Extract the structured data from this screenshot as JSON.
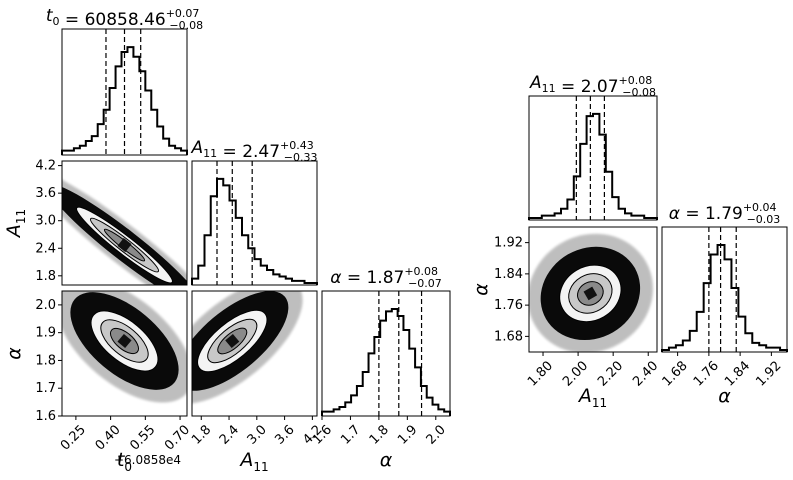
{
  "chart_data": [
    {
      "type": "corner",
      "params": [
        {
          "symbol": "t",
          "sub": "0",
          "title_value": "60858.46",
          "err_plus": "+0.07",
          "err_minus": "−0.08",
          "offset_label": "+6.0858e4",
          "median": 0.46,
          "q16": 0.38,
          "q84": 0.53,
          "range": [
            0.19,
            0.73
          ],
          "ticks": [
            "0.25",
            "0.40",
            "0.55",
            "0.70"
          ],
          "tick_values": [
            0.25,
            0.4,
            0.55,
            0.7
          ]
        },
        {
          "symbol": "A",
          "sub": "11",
          "title_value": "2.47",
          "err_plus": "+0.43",
          "err_minus": "−0.33",
          "median": 2.47,
          "q16": 2.14,
          "q84": 2.9,
          "range": [
            1.6,
            4.3
          ],
          "ticks": [
            "1.8",
            "2.4",
            "3.0",
            "3.6",
            "4.2"
          ],
          "tick_values": [
            1.8,
            2.4,
            3.0,
            3.6,
            4.2
          ]
        },
        {
          "symbol": "α",
          "sub": "",
          "title_value": "1.87",
          "err_plus": "+0.08",
          "err_minus": "−0.07",
          "median": 1.87,
          "q16": 1.8,
          "q84": 1.95,
          "range": [
            1.6,
            2.05
          ],
          "ticks": [
            "1.6",
            "1.7",
            "1.8",
            "1.9",
            "2.0"
          ],
          "tick_values": [
            1.6,
            1.7,
            1.8,
            1.9,
            2.0
          ]
        }
      ],
      "histograms": [
        [
          1,
          1,
          2,
          3,
          5,
          7,
          12,
          18,
          27,
          36,
          42,
          44,
          40,
          34,
          26,
          18,
          11,
          6,
          3,
          2,
          1
        ],
        [
          2,
          8,
          22,
          40,
          48,
          45,
          38,
          30,
          22,
          16,
          11,
          8,
          6,
          4,
          3,
          2,
          1,
          1,
          0,
          0
        ],
        [
          1,
          1,
          2,
          3,
          5,
          8,
          12,
          18,
          26,
          33,
          40,
          44,
          45,
          42,
          36,
          28,
          20,
          12,
          7,
          4,
          2,
          1
        ]
      ]
    },
    {
      "type": "corner",
      "params": [
        {
          "symbol": "A",
          "sub": "11",
          "title_value": "2.07",
          "err_plus": "+0.08",
          "err_minus": "−0.08",
          "median": 2.07,
          "q16": 1.99,
          "q84": 2.15,
          "range": [
            1.72,
            2.45
          ],
          "ticks": [
            "1.80",
            "2.00",
            "2.20",
            "2.40"
          ],
          "tick_values": [
            1.8,
            2.0,
            2.2,
            2.4
          ]
        },
        {
          "symbol": "α",
          "sub": "",
          "title_value": "1.79",
          "err_plus": "+0.04",
          "err_minus": "−0.03",
          "median": 1.79,
          "q16": 1.76,
          "q84": 1.83,
          "range": [
            1.64,
            1.96
          ],
          "ticks": [
            "1.68",
            "1.76",
            "1.84",
            "1.92"
          ],
          "tick_values": [
            1.68,
            1.76,
            1.84,
            1.92
          ]
        }
      ],
      "histograms": [
        [
          0,
          0,
          1,
          1,
          2,
          4,
          8,
          18,
          32,
          44,
          45,
          36,
          20,
          9,
          4,
          2,
          1,
          1,
          0,
          0
        ],
        [
          0,
          1,
          2,
          4,
          8,
          16,
          28,
          40,
          44,
          38,
          26,
          14,
          7,
          3,
          2,
          1,
          1,
          0
        ]
      ]
    }
  ]
}
